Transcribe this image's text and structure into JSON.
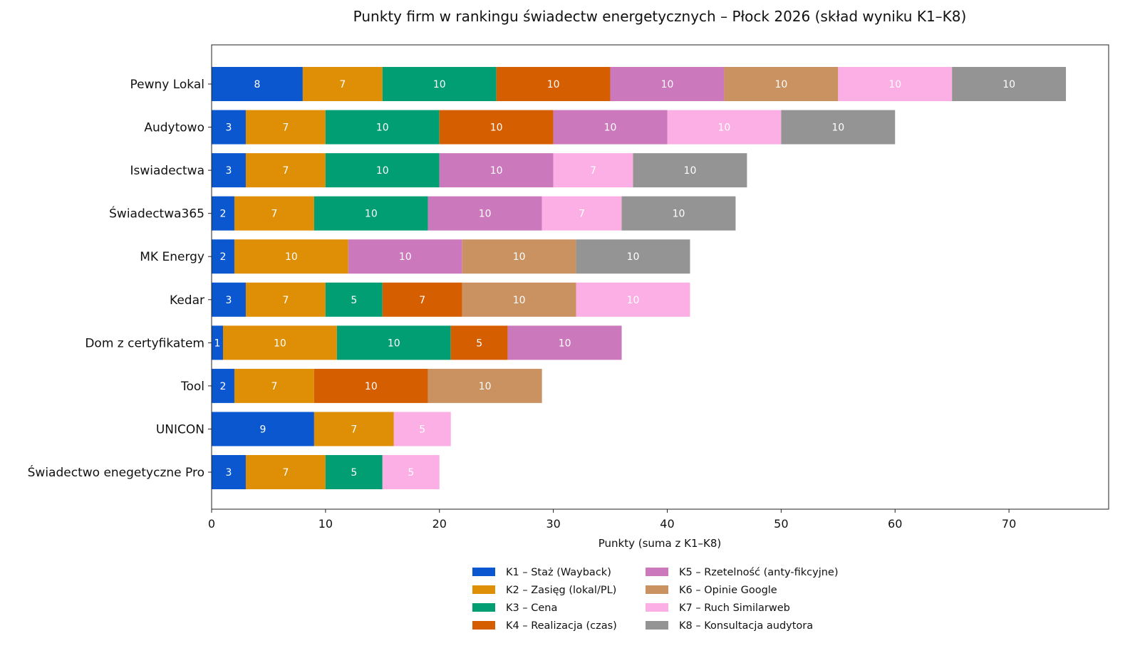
{
  "chart_data": {
    "type": "bar",
    "orientation": "horizontal",
    "stacked": true,
    "title": "Punkty firm w rankingu świadectw energetycznych – Płock 2026 (skład wyniku K1–K8)",
    "xlabel": "Punkty (suma z K1–K8)",
    "ylabel": "",
    "xlim": [
      0,
      78.75
    ],
    "xticks": [
      0,
      10,
      20,
      30,
      40,
      50,
      60,
      70
    ],
    "grid": false,
    "legend_position": "bottom-center",
    "categories": [
      "Pewny Lokal",
      "Audytowo",
      "Iswiadectwa",
      "Świadectwa365",
      "MK Energy",
      "Kedar",
      "Dom z certyfikatem",
      "Tool",
      "UNICON",
      "Świadectwo enegetyczne Pro"
    ],
    "series": [
      {
        "name": "K1 – Staż (Wayback)",
        "color": "#0b57d0",
        "values": [
          8,
          3,
          3,
          2,
          2,
          3,
          1,
          2,
          9,
          3
        ]
      },
      {
        "name": "K2 – Zasięg (lokal/PL)",
        "color": "#de8f05",
        "values": [
          7,
          7,
          7,
          7,
          10,
          7,
          10,
          7,
          7,
          7
        ]
      },
      {
        "name": "K3 – Cena",
        "color": "#029e73",
        "values": [
          10,
          10,
          10,
          10,
          0,
          5,
          10,
          0,
          0,
          5
        ]
      },
      {
        "name": "K4 – Realizacja (czas)",
        "color": "#d55e00",
        "values": [
          10,
          10,
          0,
          0,
          0,
          7,
          5,
          10,
          0,
          0
        ]
      },
      {
        "name": "K5 – Rzetelność (anty-fikcyjne)",
        "color": "#cc78bc",
        "values": [
          10,
          10,
          10,
          10,
          10,
          0,
          10,
          0,
          0,
          0
        ]
      },
      {
        "name": "K6 – Opinie Google",
        "color": "#ca9161",
        "values": [
          10,
          0,
          0,
          0,
          10,
          10,
          0,
          10,
          0,
          0
        ]
      },
      {
        "name": "K7 – Ruch Similarweb",
        "color": "#fbafe4",
        "values": [
          10,
          10,
          7,
          7,
          0,
          10,
          0,
          0,
          5,
          5
        ]
      },
      {
        "name": "K8 – Konsultacja audytora",
        "color": "#949494",
        "values": [
          10,
          10,
          10,
          10,
          10,
          0,
          0,
          0,
          0,
          0
        ]
      }
    ]
  }
}
